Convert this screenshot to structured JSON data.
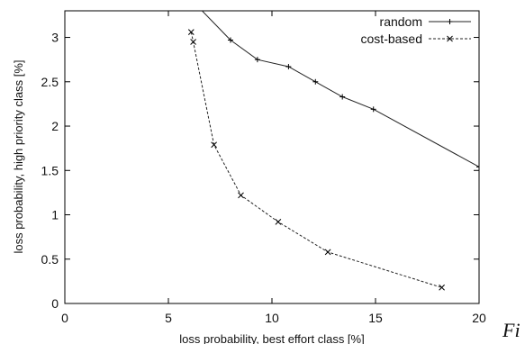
{
  "chart_data": {
    "type": "line",
    "title": "",
    "xlabel": "loss probability, best effort class [%]",
    "ylabel": "loss probability, high priority class [%]",
    "xlim": [
      0,
      20
    ],
    "ylim": [
      0,
      3.3
    ],
    "xticks": [
      0,
      5,
      10,
      15,
      20
    ],
    "yticks": [
      0,
      0.5,
      1,
      1.5,
      2,
      2.5,
      3
    ],
    "grid": false,
    "legend_position": "top-right",
    "series": [
      {
        "name": "random",
        "line_style": "solid",
        "marker": "plus",
        "x": [
          6.5,
          8.0,
          9.3,
          10.8,
          12.1,
          13.4,
          14.9,
          20.0
        ],
        "y": [
          3.33,
          2.97,
          2.75,
          2.67,
          2.5,
          2.33,
          2.19,
          1.54
        ]
      },
      {
        "name": "cost-based",
        "line_style": "dashed",
        "marker": "cross",
        "x": [
          6.1,
          6.2,
          7.2,
          8.5,
          10.3,
          12.7,
          18.2
        ],
        "y": [
          3.06,
          2.95,
          1.79,
          1.22,
          0.92,
          0.58,
          0.18
        ]
      }
    ]
  },
  "caption_fragment": "Fi"
}
